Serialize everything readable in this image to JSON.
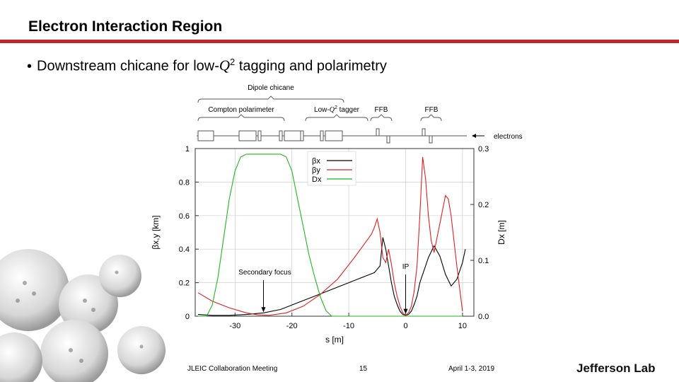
{
  "slide": {
    "title": "Electron Interaction Region",
    "bullet_prefix": "Downstream chicane for low-",
    "bullet_var": "Q",
    "bullet_exp": "2",
    "bullet_suffix": " tagging and polarimetry"
  },
  "colors": {
    "accent_bar": "#c0272d",
    "beta_x": "#000000",
    "beta_y": "#e02020",
    "D_x": "#22b522"
  },
  "footer": {
    "meeting": "JLEIC Collaboration Meeting",
    "page": "15",
    "date": "April 1-3, 2019",
    "logo": "Jefferson Lab"
  },
  "chart_data": {
    "type": "line",
    "xlabel": "s [m]",
    "ylabel_left": "βx,y [km]",
    "ylabel_right": "Dx [m]",
    "xlim": [
      -37,
      12
    ],
    "ylim_left": [
      0,
      1
    ],
    "ylim_right": [
      0,
      0.3
    ],
    "xticks": [
      "-30",
      "-20",
      "-10",
      "0",
      "10"
    ],
    "yticks_left": [
      "0",
      "0.2",
      "0.4",
      "0.6",
      "0.8",
      "1"
    ],
    "yticks_right": [
      "0.0",
      "0.1",
      "0.2",
      "0.3"
    ],
    "grid": true,
    "legend_position": "top-center",
    "series": [
      {
        "name": "βx",
        "axis": "left",
        "x": [
          -36.5,
          -34,
          -31,
          -28,
          -25,
          -22,
          -19,
          -16,
          -13,
          -10,
          -7,
          -5.5,
          -4.5,
          -4,
          -3.5,
          -3,
          -2.5,
          -2,
          -1.5,
          -1,
          -0.5,
          0,
          0.5,
          1,
          1.5,
          2,
          2.5,
          3,
          3.5,
          4,
          5,
          6,
          7,
          8,
          9,
          10,
          10.5
        ],
        "y": [
          0.01,
          0.005,
          0.005,
          0.01,
          0.02,
          0.04,
          0.08,
          0.12,
          0.16,
          0.2,
          0.24,
          0.26,
          0.3,
          0.47,
          0.4,
          0.3,
          0.2,
          0.12,
          0.07,
          0.03,
          0.01,
          0.005,
          0.01,
          0.03,
          0.07,
          0.12,
          0.2,
          0.25,
          0.3,
          0.35,
          0.42,
          0.36,
          0.25,
          0.18,
          0.22,
          0.32,
          0.4
        ]
      },
      {
        "name": "βy",
        "axis": "left",
        "x": [
          -36.5,
          -34,
          -31,
          -28,
          -26,
          -24,
          -21,
          -18,
          -15,
          -12,
          -9,
          -6,
          -5.5,
          -5,
          -4.5,
          -4,
          -3.5,
          -3,
          -2.5,
          -2,
          -1.5,
          -1,
          -0.5,
          0,
          0.5,
          1,
          1.5,
          2,
          2.5,
          3,
          3.5,
          4,
          4.5,
          5,
          6,
          7,
          7.5,
          8,
          9,
          10
        ],
        "y": [
          0.14,
          0.09,
          0.05,
          0.02,
          0.008,
          0.005,
          0.02,
          0.06,
          0.13,
          0.22,
          0.35,
          0.49,
          0.53,
          0.58,
          0.5,
          0.35,
          0.32,
          0.4,
          0.31,
          0.2,
          0.12,
          0.06,
          0.02,
          0.005,
          0.02,
          0.06,
          0.15,
          0.3,
          0.6,
          0.95,
          0.82,
          0.6,
          0.45,
          0.38,
          0.55,
          0.72,
          0.7,
          0.6,
          0.3,
          0.03
        ]
      },
      {
        "name": "Dx",
        "axis": "right",
        "x": [
          -36.5,
          -35,
          -34,
          -33,
          -32,
          -31,
          -30,
          -29,
          -28,
          -27,
          -26,
          -25,
          -24,
          -23,
          -22,
          -21,
          -20,
          -19,
          -18,
          -17,
          -16,
          -15,
          -14,
          -13,
          -12,
          -11,
          -10,
          -9,
          10
        ],
        "y": [
          0.0,
          0.0,
          0.02,
          0.07,
          0.14,
          0.21,
          0.26,
          0.285,
          0.29,
          0.29,
          0.29,
          0.29,
          0.29,
          0.29,
          0.29,
          0.285,
          0.26,
          0.21,
          0.16,
          0.11,
          0.07,
          0.035,
          0.01,
          0.0,
          0.0,
          0.0,
          0.0,
          0.0,
          0.0
        ]
      }
    ],
    "annotations": [
      {
        "text": "Secondary focus",
        "x": -25,
        "y": 0.02
      },
      {
        "text": "IP",
        "x": 0,
        "y": 0.01
      },
      {
        "text": "electrons"
      }
    ],
    "lattice_labels": {
      "chicane": "Dipole chicane",
      "compton": "Compton polarimeter",
      "tagger_prefix": "Low-",
      "tagger_var": "Q",
      "tagger_exp": "2",
      "tagger_suffix": " tagger",
      "ffb1": "FFB",
      "ffb2": "FFB"
    }
  }
}
